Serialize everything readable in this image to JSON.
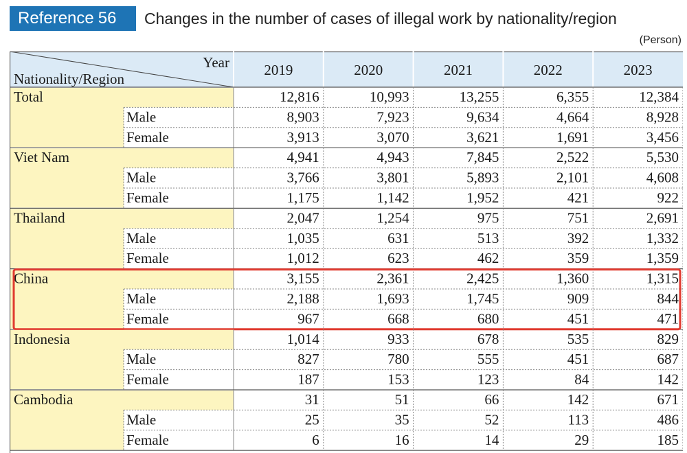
{
  "reference": {
    "label": "Reference",
    "number": "56"
  },
  "title": "Changes in the number of cases of illegal work by nationality/region",
  "unit": "(Person)",
  "chart_data": {
    "type": "table",
    "corner_top": "Year",
    "corner_bottom": "Nationality/Region",
    "years": [
      "2019",
      "2020",
      "2021",
      "2022",
      "2023"
    ],
    "groups": [
      {
        "name": "Total",
        "rows": [
          {
            "label": "",
            "values": [
              "12,816",
              "10,993",
              "13,255",
              "6,355",
              "12,384"
            ]
          },
          {
            "label": "Male",
            "values": [
              "8,903",
              "7,923",
              "9,634",
              "4,664",
              "8,928"
            ]
          },
          {
            "label": "Female",
            "values": [
              "3,913",
              "3,070",
              "3,621",
              "1,691",
              "3,456"
            ]
          }
        ]
      },
      {
        "name": "Viet Nam",
        "rows": [
          {
            "label": "",
            "values": [
              "4,941",
              "4,943",
              "7,845",
              "2,522",
              "5,530"
            ]
          },
          {
            "label": "Male",
            "values": [
              "3,766",
              "3,801",
              "5,893",
              "2,101",
              "4,608"
            ]
          },
          {
            "label": "Female",
            "values": [
              "1,175",
              "1,142",
              "1,952",
              "421",
              "922"
            ]
          }
        ]
      },
      {
        "name": "Thailand",
        "rows": [
          {
            "label": "",
            "values": [
              "2,047",
              "1,254",
              "975",
              "751",
              "2,691"
            ]
          },
          {
            "label": "Male",
            "values": [
              "1,035",
              "631",
              "513",
              "392",
              "1,332"
            ]
          },
          {
            "label": "Female",
            "values": [
              "1,012",
              "623",
              "462",
              "359",
              "1,359"
            ]
          }
        ]
      },
      {
        "name": "China",
        "highlight": true,
        "rows": [
          {
            "label": "",
            "values": [
              "3,155",
              "2,361",
              "2,425",
              "1,360",
              "1,315"
            ]
          },
          {
            "label": "Male",
            "values": [
              "2,188",
              "1,693",
              "1,745",
              "909",
              "844"
            ]
          },
          {
            "label": "Female",
            "values": [
              "967",
              "668",
              "680",
              "451",
              "471"
            ]
          }
        ]
      },
      {
        "name": "Indonesia",
        "rows": [
          {
            "label": "",
            "values": [
              "1,014",
              "933",
              "678",
              "535",
              "829"
            ]
          },
          {
            "label": "Male",
            "values": [
              "827",
              "780",
              "555",
              "451",
              "687"
            ]
          },
          {
            "label": "Female",
            "values": [
              "187",
              "153",
              "123",
              "84",
              "142"
            ]
          }
        ]
      },
      {
        "name": "Cambodia",
        "rows": [
          {
            "label": "",
            "values": [
              "31",
              "51",
              "66",
              "142",
              "671"
            ]
          },
          {
            "label": "Male",
            "values": [
              "25",
              "35",
              "52",
              "113",
              "486"
            ]
          },
          {
            "label": "Female",
            "values": [
              "6",
              "16",
              "14",
              "29",
              "185"
            ]
          }
        ]
      }
    ]
  },
  "colors": {
    "badge": "#1e74b5",
    "header_fill": "#dbeaf6",
    "label_fill": "#fdf5c0",
    "highlight_border": "#e03a2f"
  }
}
